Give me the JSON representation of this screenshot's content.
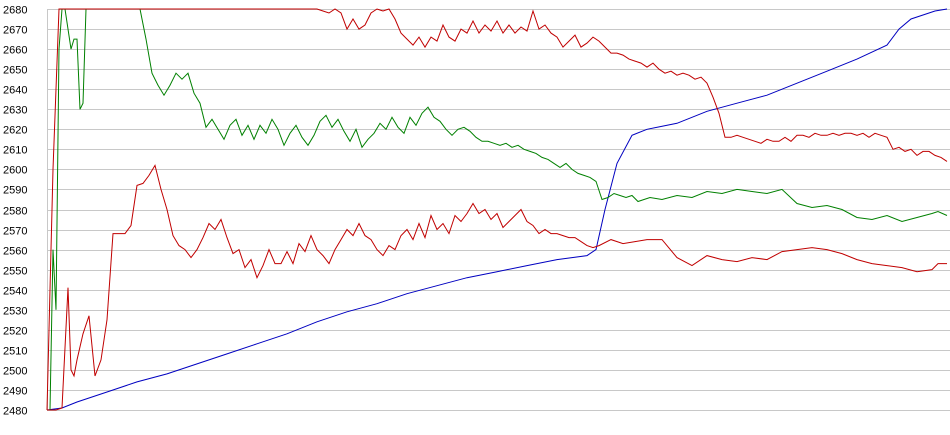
{
  "chart_data": {
    "type": "line",
    "title": "",
    "xlabel": "",
    "ylabel": "",
    "ylim": [
      2480,
      2680
    ],
    "xlim": [
      0,
      300
    ],
    "yticks": [
      2480,
      2490,
      2500,
      2510,
      2520,
      2530,
      2540,
      2550,
      2560,
      2570,
      2580,
      2590,
      2600,
      2610,
      2620,
      2630,
      2640,
      2650,
      2660,
      2670,
      2680
    ],
    "grid": true,
    "legend": "none",
    "series": [
      {
        "color": "#0000c0",
        "x": [
          0,
          5,
          10,
          20,
          30,
          40,
          50,
          60,
          70,
          80,
          90,
          100,
          110,
          120,
          130,
          140,
          150,
          160,
          170,
          180,
          183,
          186,
          190,
          195,
          200,
          210,
          220,
          230,
          240,
          250,
          260,
          270,
          280,
          284,
          288,
          292,
          296,
          300
        ],
        "values": [
          2480,
          2481,
          2484,
          2489,
          2494,
          2498,
          2503,
          2508,
          2513,
          2518,
          2524,
          2529,
          2533,
          2538,
          2542,
          2546,
          2549,
          2552,
          2555,
          2557,
          2560,
          2580,
          2603,
          2617,
          2620,
          2623,
          2629,
          2633,
          2637,
          2643,
          2649,
          2655,
          2662,
          2670,
          2675,
          2677,
          2679,
          2680
        ]
      },
      {
        "color": "#008000",
        "x": [
          0,
          1,
          2,
          3,
          4,
          5,
          6,
          7,
          8,
          9,
          10,
          11,
          12,
          13,
          15,
          17,
          19,
          21,
          23,
          25,
          27,
          29,
          31,
          33,
          35,
          37,
          39,
          41,
          43,
          45,
          47,
          49,
          51,
          53,
          55,
          57,
          59,
          61,
          63,
          65,
          67,
          69,
          71,
          73,
          75,
          77,
          79,
          81,
          83,
          85,
          87,
          89,
          91,
          93,
          95,
          97,
          99,
          101,
          103,
          105,
          107,
          109,
          111,
          113,
          115,
          117,
          119,
          121,
          123,
          125,
          127,
          129,
          131,
          133,
          135,
          137,
          139,
          141,
          143,
          145,
          147,
          149,
          151,
          153,
          155,
          157,
          159,
          161,
          163,
          165,
          167,
          169,
          171,
          173,
          175,
          177,
          179,
          181,
          183,
          185,
          187,
          189,
          191,
          193,
          195,
          197,
          199,
          201,
          205,
          210,
          215,
          220,
          225,
          230,
          235,
          240,
          245,
          250,
          255,
          260,
          265,
          270,
          275,
          280,
          285,
          290,
          295,
          297,
          300
        ],
        "values": [
          2480,
          2480,
          2560,
          2530,
          2660,
          2680,
          2680,
          2670,
          2660,
          2665,
          2665,
          2630,
          2633,
          2680,
          2680,
          2680,
          2680,
          2680,
          2680,
          2680,
          2680,
          2680,
          2680,
          2665,
          2648,
          2642,
          2637,
          2642,
          2648,
          2645,
          2648,
          2638,
          2633,
          2621,
          2625,
          2620,
          2615,
          2622,
          2625,
          2617,
          2622,
          2615,
          2622,
          2618,
          2625,
          2620,
          2612,
          2618,
          2622,
          2616,
          2612,
          2617,
          2624,
          2627,
          2621,
          2625,
          2619,
          2614,
          2620,
          2611,
          2615,
          2618,
          2623,
          2620,
          2626,
          2621,
          2618,
          2626,
          2622,
          2628,
          2631,
          2626,
          2624,
          2620,
          2617,
          2620,
          2621,
          2619,
          2616,
          2614,
          2614,
          2613,
          2612,
          2613,
          2611,
          2612,
          2610,
          2609,
          2608,
          2606,
          2605,
          2603,
          2601,
          2603,
          2600,
          2598,
          2597,
          2596,
          2594,
          2585,
          2586,
          2588,
          2587,
          2586,
          2587,
          2584,
          2585,
          2586,
          2585,
          2587,
          2586,
          2589,
          2588,
          2590,
          2589,
          2588,
          2590,
          2583,
          2581,
          2582,
          2580,
          2576,
          2575,
          2577,
          2574,
          2576,
          2578,
          2579,
          2577
        ]
      },
      {
        "color": "#c00000",
        "x": [
          0,
          3,
          5,
          7,
          8,
          9,
          10,
          12,
          14,
          16,
          18,
          20,
          22,
          24,
          26,
          28,
          30,
          32,
          34,
          36,
          38,
          40,
          42,
          44,
          46,
          48,
          50,
          52,
          54,
          56,
          58,
          60,
          62,
          64,
          66,
          68,
          70,
          72,
          74,
          76,
          78,
          80,
          82,
          84,
          86,
          88,
          90,
          92,
          94,
          96,
          98,
          100,
          102,
          104,
          106,
          108,
          110,
          112,
          114,
          116,
          118,
          120,
          122,
          124,
          126,
          128,
          130,
          132,
          134,
          136,
          138,
          140,
          142,
          144,
          146,
          148,
          150,
          152,
          154,
          156,
          158,
          160,
          162,
          164,
          166,
          168,
          170,
          172,
          174,
          176,
          178,
          180,
          182,
          184,
          188,
          192,
          196,
          200,
          205,
          210,
          215,
          220,
          225,
          230,
          235,
          240,
          245,
          250,
          255,
          260,
          265,
          270,
          275,
          280,
          285,
          290,
          295,
          297,
          300
        ],
        "values": [
          2480,
          2480,
          2481,
          2541,
          2500,
          2497,
          2505,
          2518,
          2527,
          2497,
          2505,
          2525,
          2568,
          2568,
          2568,
          2572,
          2592,
          2593,
          2597,
          2602,
          2590,
          2580,
          2567,
          2562,
          2560,
          2556,
          2560,
          2566,
          2573,
          2570,
          2575,
          2566,
          2558,
          2560,
          2551,
          2555,
          2546,
          2552,
          2560,
          2553,
          2553,
          2559,
          2553,
          2563,
          2559,
          2567,
          2560,
          2557,
          2553,
          2560,
          2565,
          2570,
          2567,
          2573,
          2567,
          2565,
          2560,
          2557,
          2562,
          2560,
          2567,
          2570,
          2565,
          2573,
          2566,
          2577,
          2570,
          2573,
          2568,
          2577,
          2574,
          2578,
          2583,
          2578,
          2580,
          2575,
          2578,
          2571,
          2574,
          2577,
          2580,
          2574,
          2572,
          2568,
          2570,
          2568,
          2568,
          2567,
          2566,
          2566,
          2564,
          2562,
          2561,
          2562,
          2565,
          2563,
          2564,
          2565,
          2565,
          2556,
          2552,
          2557,
          2555,
          2554,
          2556,
          2555,
          2559,
          2560,
          2561,
          2560,
          2558,
          2555,
          2553,
          2552,
          2551,
          2549,
          2550,
          2553,
          2553
        ]
      },
      {
        "color": "#c00000",
        "x": [
          0,
          2,
          4,
          6,
          8,
          10,
          15,
          20,
          30,
          40,
          50,
          60,
          70,
          80,
          85,
          88,
          90,
          92,
          94,
          96,
          98,
          100,
          102,
          104,
          106,
          108,
          110,
          112,
          114,
          116,
          118,
          120,
          122,
          124,
          126,
          128,
          130,
          132,
          134,
          136,
          138,
          140,
          142,
          144,
          146,
          148,
          150,
          152,
          154,
          156,
          158,
          160,
          162,
          164,
          166,
          168,
          170,
          172,
          174,
          176,
          178,
          180,
          182,
          184,
          186,
          188,
          190,
          192,
          194,
          196,
          198,
          200,
          202,
          204,
          206,
          208,
          210,
          212,
          214,
          216,
          218,
          220,
          222,
          224,
          226,
          228,
          230,
          232,
          234,
          236,
          238,
          240,
          242,
          244,
          246,
          248,
          250,
          252,
          254,
          256,
          258,
          260,
          262,
          264,
          266,
          268,
          270,
          272,
          274,
          276,
          278,
          280,
          282,
          284,
          286,
          288,
          290,
          292,
          294,
          296,
          298,
          300
        ],
        "values": [
          2480,
          2600,
          2680,
          2680,
          2680,
          2680,
          2680,
          2680,
          2680,
          2680,
          2680,
          2680,
          2680,
          2680,
          2680,
          2680,
          2680,
          2679,
          2678,
          2680,
          2678,
          2670,
          2675,
          2670,
          2672,
          2678,
          2680,
          2679,
          2680,
          2675,
          2668,
          2665,
          2662,
          2666,
          2661,
          2666,
          2664,
          2672,
          2666,
          2664,
          2670,
          2668,
          2674,
          2668,
          2672,
          2669,
          2674,
          2668,
          2672,
          2668,
          2671,
          2669,
          2679,
          2670,
          2672,
          2668,
          2666,
          2661,
          2664,
          2667,
          2661,
          2663,
          2666,
          2664,
          2661,
          2658,
          2658,
          2657,
          2655,
          2654,
          2653,
          2651,
          2653,
          2650,
          2648,
          2649,
          2647,
          2648,
          2647,
          2645,
          2646,
          2643,
          2636,
          2628,
          2616,
          2616,
          2617,
          2616,
          2615,
          2614,
          2613,
          2615,
          2614,
          2614,
          2616,
          2614,
          2617,
          2617,
          2616,
          2618,
          2617,
          2617,
          2618,
          2617,
          2618,
          2618,
          2617,
          2618,
          2616,
          2618,
          2617,
          2616,
          2610,
          2611,
          2609,
          2610,
          2607,
          2609,
          2609,
          2607,
          2606,
          2604
        ]
      }
    ]
  }
}
